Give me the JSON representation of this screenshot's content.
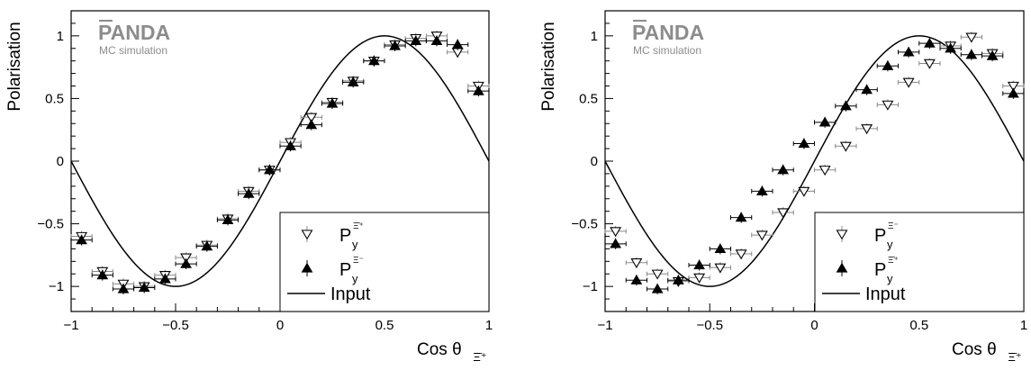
{
  "chart_data": [
    {
      "type": "scatter",
      "ylabel": "Polarisation",
      "xlabel_main": "Cos θ",
      "xlabel_sub": "Ξ̄⁺",
      "xlim": [
        -1,
        1
      ],
      "ylim": [
        -1.2,
        1.2
      ],
      "xticks": [
        "−1",
        "−0.5",
        "0",
        "0.5",
        "1"
      ],
      "yticks": [
        "−1",
        "−0.5",
        "0",
        "0.5",
        "1"
      ],
      "logo": {
        "main": "PANDA",
        "sub": "MC simulation"
      },
      "input_curve": {
        "name": "Input",
        "amplitude": 1.0,
        "phase": 0.0
      },
      "series": [
        {
          "name_main": "P",
          "name_sub": "y",
          "name_sup": "Ξ̄⁺",
          "marker": "open-down-triangle",
          "color": "#888888",
          "x": [
            -0.95,
            -0.85,
            -0.75,
            -0.65,
            -0.55,
            -0.45,
            -0.35,
            -0.25,
            -0.15,
            -0.05,
            0.05,
            0.15,
            0.25,
            0.35,
            0.45,
            0.55,
            0.65,
            0.75,
            0.85,
            0.95
          ],
          "y": [
            -0.6,
            -0.88,
            -0.98,
            -1.0,
            -0.91,
            -0.77,
            -0.67,
            -0.46,
            -0.24,
            -0.07,
            0.15,
            0.35,
            0.47,
            0.64,
            0.8,
            0.93,
            0.98,
            1.0,
            0.87,
            0.6
          ]
        },
        {
          "name_main": "P",
          "name_sub": "y",
          "name_sup": "Ξ⁻",
          "marker": "filled-up-triangle",
          "color": "#000000",
          "x": [
            -0.95,
            -0.85,
            -0.75,
            -0.65,
            -0.55,
            -0.45,
            -0.35,
            -0.25,
            -0.15,
            -0.05,
            0.05,
            0.15,
            0.25,
            0.35,
            0.45,
            0.55,
            0.65,
            0.75,
            0.85,
            0.95
          ],
          "y": [
            -0.63,
            -0.91,
            -1.02,
            -1.01,
            -0.94,
            -0.82,
            -0.68,
            -0.47,
            -0.26,
            -0.07,
            0.12,
            0.29,
            0.46,
            0.63,
            0.8,
            0.92,
            0.96,
            0.96,
            0.93,
            0.56
          ]
        }
      ]
    },
    {
      "type": "scatter",
      "ylabel": "Polarisation",
      "xlabel_main": "Cos θ",
      "xlabel_sub": "Ξ̄⁺",
      "xlim": [
        -1,
        1
      ],
      "ylim": [
        -1.2,
        1.2
      ],
      "xticks": [
        "−1",
        "−0.5",
        "0",
        "0.5",
        "1"
      ],
      "yticks": [
        "−1",
        "−0.5",
        "0",
        "0.5",
        "1"
      ],
      "logo": {
        "main": "PANDA",
        "sub": "MC simulation"
      },
      "input_curve": {
        "name": "Input",
        "amplitude": 1.0,
        "phase": 0.0
      },
      "series": [
        {
          "name_main": "P",
          "name_sub": "y",
          "name_sup": "Ξ⁻",
          "marker": "open-down-triangle",
          "color": "#888888",
          "x": [
            -0.95,
            -0.85,
            -0.75,
            -0.65,
            -0.55,
            -0.45,
            -0.35,
            -0.25,
            -0.15,
            -0.05,
            0.05,
            0.15,
            0.25,
            0.35,
            0.45,
            0.55,
            0.65,
            0.75,
            0.85,
            0.95
          ],
          "y": [
            -0.56,
            -0.81,
            -0.9,
            -0.96,
            -0.93,
            -0.85,
            -0.74,
            -0.59,
            -0.41,
            -0.24,
            -0.07,
            0.12,
            0.26,
            0.45,
            0.63,
            0.78,
            0.92,
            0.99,
            0.86,
            0.6
          ]
        },
        {
          "name_main": "P",
          "name_sub": "y",
          "name_sup": "Ξ̄⁺",
          "marker": "filled-up-triangle",
          "color": "#000000",
          "x": [
            -0.95,
            -0.85,
            -0.75,
            -0.65,
            -0.55,
            -0.45,
            -0.35,
            -0.25,
            -0.15,
            -0.05,
            0.05,
            0.15,
            0.25,
            0.35,
            0.45,
            0.55,
            0.65,
            0.75,
            0.85,
            0.95
          ],
          "y": [
            -0.66,
            -0.95,
            -1.02,
            -0.95,
            -0.83,
            -0.7,
            -0.45,
            -0.24,
            -0.07,
            0.14,
            0.31,
            0.44,
            0.57,
            0.76,
            0.87,
            0.94,
            0.9,
            0.85,
            0.84,
            0.54
          ]
        }
      ]
    }
  ]
}
